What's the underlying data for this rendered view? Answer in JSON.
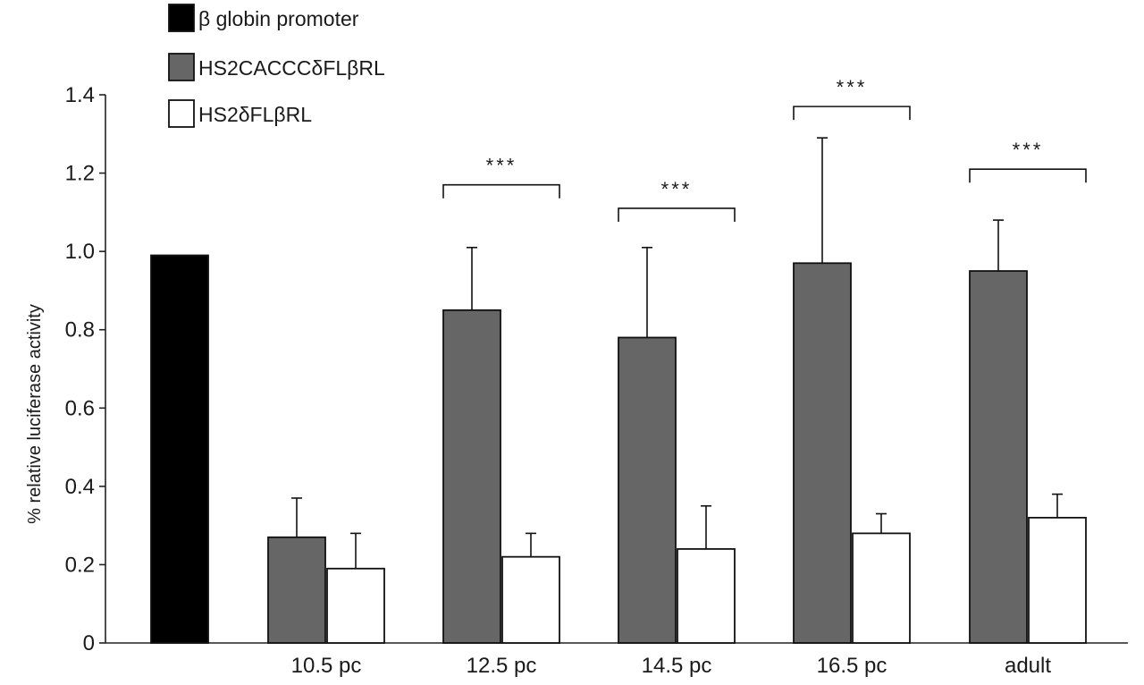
{
  "chart_data": {
    "type": "bar",
    "title": "",
    "xlabel": "",
    "ylabel": "% relative luciferase activity",
    "ylim": [
      0,
      1.4
    ],
    "yticks": [
      "0",
      "0.2",
      "0.4",
      "0.6",
      "0.8",
      "1.0",
      "1.2",
      "1.4"
    ],
    "yticks_values": [
      0,
      0.2,
      0.4,
      0.6,
      0.8,
      1.0,
      1.2,
      1.4
    ],
    "categories": [
      "",
      "10.5 pc",
      "12.5 pc",
      "14.5 pc",
      "16.5 pc",
      "adult"
    ],
    "legend_position": "top-left",
    "series": [
      {
        "name": "β globin promoter",
        "color": "#000000",
        "values": [
          0.99,
          null,
          null,
          null,
          null,
          null
        ],
        "errors": [
          null,
          null,
          null,
          null,
          null,
          null
        ]
      },
      {
        "name": "HS2CACCCδFLβRL",
        "color": "#666666",
        "values": [
          null,
          0.27,
          0.85,
          0.78,
          0.97,
          0.95
        ],
        "errors": [
          null,
          0.1,
          0.16,
          0.23,
          0.32,
          0.13
        ]
      },
      {
        "name": "HS2δFLβRL",
        "color": "#ffffff",
        "values": [
          null,
          0.19,
          0.22,
          0.24,
          0.28,
          0.32
        ],
        "errors": [
          null,
          0.09,
          0.06,
          0.11,
          0.05,
          0.06
        ]
      }
    ],
    "annotations": [
      {
        "category": "12.5 pc",
        "text": "***"
      },
      {
        "category": "14.5 pc",
        "text": "***"
      },
      {
        "category": "16.5 pc",
        "text": "***"
      },
      {
        "category": "adult",
        "text": "***"
      }
    ]
  }
}
